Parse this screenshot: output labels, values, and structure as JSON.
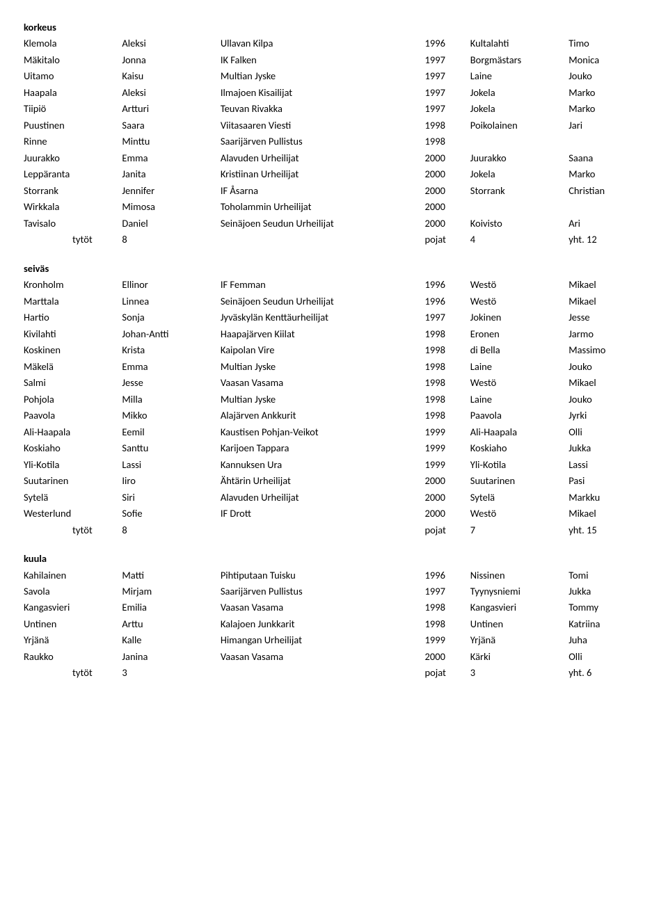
{
  "sections": [
    {
      "title": "korkeus",
      "rows": [
        [
          "Klemola",
          "Aleksi",
          "Ullavan Kilpa",
          "1996",
          "Kultalahti",
          "Timo"
        ],
        [
          "Mäkitalo",
          "Jonna",
          "IK Falken",
          "1997",
          "Borgmästars",
          "Monica"
        ],
        [
          "Uitamo",
          "Kaisu",
          "Multian Jyske",
          "1997",
          "Laine",
          "Jouko"
        ],
        [
          "Haapala",
          "Aleksi",
          "Ilmajoen Kisailijat",
          "1997",
          "Jokela",
          "Marko"
        ],
        [
          "Tiipiö",
          "Artturi",
          "Teuvan Rivakka",
          "1997",
          "Jokela",
          "Marko"
        ],
        [
          "Puustinen",
          "Saara",
          "Viitasaaren Viesti",
          "1998",
          "Poikolainen",
          "Jari"
        ],
        [
          "Rinne",
          "Minttu",
          "Saarijärven Pullistus",
          "1998",
          "",
          ""
        ],
        [
          "Juurakko",
          "Emma",
          "Alavuden Urheilijat",
          "2000",
          "Juurakko",
          "Saana"
        ],
        [
          "Leppäranta",
          "Janita",
          "Kristiinan Urheilijat",
          "2000",
          "Jokela",
          "Marko"
        ],
        [
          "Storrank",
          "Jennifer",
          "IF Åsarna",
          "2000",
          "Storrank",
          "Christian"
        ],
        [
          "Wirkkala",
          "Mimosa",
          "Toholammin Urheilijat",
          "2000",
          "",
          ""
        ],
        [
          "Tavisalo",
          "Daniel",
          "Seinäjoen Seudun Urheilijat",
          "2000",
          "Koivisto",
          "Ari"
        ]
      ],
      "summary": {
        "tytot_label": "tytöt",
        "tytot": "8",
        "pojat_label": "pojat",
        "pojat": "4",
        "yht_label": "yht.",
        "yht": "12"
      }
    },
    {
      "title": "seiväs",
      "rows": [
        [
          "Kronholm",
          "Ellinor",
          "IF Femman",
          "1996",
          "Westö",
          "Mikael"
        ],
        [
          "Marttala",
          "Linnea",
          "Seinäjoen Seudun Urheilijat",
          "1996",
          "Westö",
          "Mikael"
        ],
        [
          "Hartio",
          "Sonja",
          "Jyväskylän Kenttäurheilijat",
          "1997",
          "Jokinen",
          "Jesse"
        ],
        [
          "Kivilahti",
          "Johan-Antti",
          "Haapajärven Kiilat",
          "1998",
          "Eronen",
          "Jarmo"
        ],
        [
          "Koskinen",
          "Krista",
          "Kaipolan Vire",
          "1998",
          "di Bella",
          "Massimo"
        ],
        [
          "Mäkelä",
          "Emma",
          "Multian Jyske",
          "1998",
          "Laine",
          "Jouko"
        ],
        [
          "Salmi",
          "Jesse",
          "Vaasan Vasama",
          "1998",
          "Westö",
          "Mikael"
        ],
        [
          "Pohjola",
          "Milla",
          "Multian Jyske",
          "1998",
          "Laine",
          "Jouko"
        ],
        [
          "Paavola",
          "Mikko",
          "Alajärven Ankkurit",
          "1998",
          "Paavola",
          "Jyrki"
        ],
        [
          "Ali-Haapala",
          "Eemil",
          "Kaustisen Pohjan-Veikot",
          "1999",
          "Ali-Haapala",
          "Olli"
        ],
        [
          "Koskiaho",
          "Santtu",
          "Karijoen Tappara",
          "1999",
          "Koskiaho",
          "Jukka"
        ],
        [
          "Yli-Kotila",
          "Lassi",
          "Kannuksen Ura",
          "1999",
          "Yli-Kotila",
          "Lassi"
        ],
        [
          "Suutarinen",
          "Iiro",
          "Ähtärin Urheilijat",
          "2000",
          "Suutarinen",
          "Pasi"
        ],
        [
          "Sytelä",
          "Siri",
          "Alavuden Urheilijat",
          "2000",
          "Sytelä",
          "Markku"
        ],
        [
          "Westerlund",
          "Sofie",
          "IF Drott",
          "2000",
          "Westö",
          "Mikael"
        ]
      ],
      "summary": {
        "tytot_label": "tytöt",
        "tytot": "8",
        "pojat_label": "pojat",
        "pojat": "7",
        "yht_label": "yht.",
        "yht": "15"
      }
    },
    {
      "title": "kuula",
      "rows": [
        [
          "Kahilainen",
          "Matti",
          "Pihtiputaan Tuisku",
          "1996",
          "Nissinen",
          "Tomi"
        ],
        [
          "Savola",
          "Mirjam",
          "Saarijärven Pullistus",
          "1997",
          "Tyynysniemi",
          "Jukka"
        ],
        [
          "Kangasvieri",
          "Emilia",
          "Vaasan Vasama",
          "1998",
          "Kangasvieri",
          "Tommy"
        ],
        [
          "Untinen",
          "Arttu",
          "Kalajoen Junkkarit",
          "1998",
          "Untinen",
          "Katriina"
        ],
        [
          "Yrjänä",
          "Kalle",
          "Himangan Urheilijat",
          "1999",
          "Yrjänä",
          "Juha"
        ],
        [
          "Raukko",
          "Janina",
          "Vaasan Vasama",
          "2000",
          "Kärki",
          "Olli"
        ]
      ],
      "summary": {
        "tytot_label": "tytöt",
        "tytot": "3",
        "pojat_label": "pojat",
        "pojat": "3",
        "yht_label": "yht.",
        "yht": "6"
      }
    }
  ]
}
